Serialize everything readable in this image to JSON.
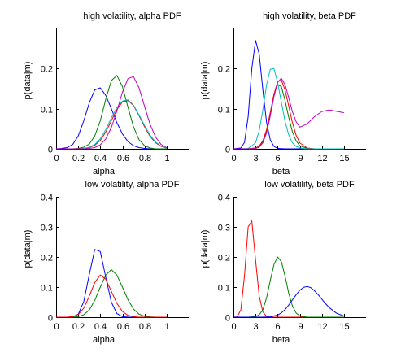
{
  "chart_data": [
    {
      "type": "line",
      "title": "high volatility, alpha PDF",
      "xlabel": "alpha",
      "ylabel": "p(data|m)",
      "xlim": [
        0,
        1.2
      ],
      "ylim": [
        0,
        0.3
      ],
      "xticks": [
        0,
        0.2,
        0.4,
        0.6,
        0.8,
        1
      ],
      "xtick_labels": [
        "0",
        "0.2",
        "0.4",
        "0.6",
        "0.8",
        "1"
      ],
      "yticks": [
        0,
        0.1,
        0.2
      ],
      "ytick_labels": [
        "0",
        "0.1",
        "0.2"
      ],
      "grid": false,
      "series": [
        {
          "color": "#0000ff",
          "x": [
            0,
            0.05,
            0.1,
            0.15,
            0.2,
            0.25,
            0.3,
            0.35,
            0.4,
            0.45,
            0.5,
            0.55,
            0.6,
            0.65,
            0.7,
            0.75,
            0.8,
            0.85,
            0.9,
            0.95,
            1
          ],
          "values": [
            0,
            0.001,
            0.003,
            0.011,
            0.032,
            0.07,
            0.115,
            0.147,
            0.152,
            0.133,
            0.1,
            0.065,
            0.037,
            0.018,
            0.008,
            0.003,
            0.001,
            0,
            0,
            0,
            0
          ]
        },
        {
          "color": "#008000",
          "x": [
            0,
            0.05,
            0.1,
            0.15,
            0.2,
            0.25,
            0.3,
            0.35,
            0.4,
            0.45,
            0.5,
            0.55,
            0.6,
            0.65,
            0.7,
            0.75,
            0.8,
            0.85,
            0.9,
            0.95,
            1
          ],
          "values": [
            0,
            0,
            0,
            0,
            0.001,
            0.004,
            0.012,
            0.032,
            0.07,
            0.124,
            0.17,
            0.183,
            0.155,
            0.104,
            0.055,
            0.023,
            0.008,
            0.002,
            0,
            0,
            0
          ]
        },
        {
          "color": "#ff0000",
          "x": [
            0,
            0.05,
            0.1,
            0.15,
            0.2,
            0.25,
            0.3,
            0.35,
            0.4,
            0.45,
            0.5,
            0.55,
            0.6,
            0.65,
            0.7,
            0.75,
            0.8,
            0.85,
            0.9,
            0.95,
            1
          ],
          "values": [
            0,
            0,
            0,
            0,
            0,
            0.001,
            0.003,
            0.009,
            0.021,
            0.042,
            0.07,
            0.098,
            0.117,
            0.12,
            0.108,
            0.083,
            0.055,
            0.031,
            0.015,
            0.006,
            0.002
          ]
        },
        {
          "color": "#00bfbf",
          "x": [
            0,
            0.05,
            0.1,
            0.15,
            0.2,
            0.25,
            0.3,
            0.35,
            0.4,
            0.45,
            0.5,
            0.55,
            0.6,
            0.65,
            0.7,
            0.75,
            0.8,
            0.85,
            0.9,
            0.95,
            1
          ],
          "values": [
            0,
            0,
            0,
            0,
            0,
            0.001,
            0.004,
            0.011,
            0.025,
            0.048,
            0.077,
            0.103,
            0.119,
            0.122,
            0.109,
            0.085,
            0.058,
            0.034,
            0.017,
            0.007,
            0.002
          ]
        },
        {
          "color": "#bf00bf",
          "x": [
            0,
            0.05,
            0.1,
            0.15,
            0.2,
            0.25,
            0.3,
            0.35,
            0.4,
            0.45,
            0.5,
            0.55,
            0.6,
            0.65,
            0.7,
            0.75,
            0.8,
            0.85,
            0.9,
            0.95,
            1
          ],
          "values": [
            0,
            0,
            0,
            0,
            0,
            0,
            0.001,
            0.003,
            0.01,
            0.025,
            0.053,
            0.094,
            0.141,
            0.175,
            0.18,
            0.152,
            0.106,
            0.061,
            0.029,
            0.011,
            0.003
          ]
        }
      ]
    },
    {
      "type": "line",
      "title": "high volatility, beta PDF",
      "xlabel": "beta",
      "ylabel": "p(data|m)",
      "xlim": [
        0,
        18
      ],
      "ylim": [
        0,
        0.3
      ],
      "xticks": [
        0,
        3,
        6,
        9,
        12,
        15
      ],
      "xtick_labels": [
        "0",
        "3",
        "6",
        "9",
        "12",
        "15"
      ],
      "yticks": [
        0,
        0.1,
        0.2
      ],
      "ytick_labels": [
        "0",
        "0.1",
        "0.2"
      ],
      "grid": false,
      "series": [
        {
          "color": "#0000ff",
          "x": [
            0,
            1,
            1.5,
            2,
            2.5,
            3,
            3.5,
            4,
            4.5,
            5,
            5.5,
            6,
            7,
            8,
            9,
            10,
            11,
            12,
            13,
            14,
            15
          ],
          "values": [
            0,
            0.002,
            0.016,
            0.08,
            0.2,
            0.27,
            0.236,
            0.146,
            0.065,
            0.022,
            0.006,
            0.001,
            0,
            0,
            0,
            0,
            0,
            0,
            0,
            0,
            0
          ]
        },
        {
          "color": "#008000",
          "x": [
            0,
            1,
            2,
            3,
            3.5,
            4,
            4.5,
            5,
            5.5,
            6,
            6.5,
            7,
            7.5,
            8,
            8.5,
            9,
            10,
            11,
            12,
            13,
            15
          ],
          "values": [
            0,
            0,
            0,
            0.002,
            0.006,
            0.018,
            0.046,
            0.09,
            0.135,
            0.16,
            0.155,
            0.121,
            0.079,
            0.043,
            0.02,
            0.008,
            0.001,
            0,
            0,
            0,
            0
          ]
        },
        {
          "color": "#ff0000",
          "x": [
            0,
            1,
            2,
            3,
            3.5,
            4,
            4.5,
            5,
            5.5,
            6,
            6.5,
            7,
            7.5,
            8,
            8.5,
            9,
            10,
            11,
            12,
            13,
            15
          ],
          "values": [
            0,
            0,
            0,
            0.002,
            0.007,
            0.02,
            0.048,
            0.09,
            0.136,
            0.167,
            0.171,
            0.147,
            0.107,
            0.066,
            0.034,
            0.015,
            0.002,
            0,
            0,
            0,
            0
          ]
        },
        {
          "color": "#00bfbf",
          "x": [
            0,
            1,
            2,
            3,
            3.5,
            4,
            4.5,
            5,
            5.5,
            6,
            6.5,
            7,
            7.5,
            8,
            8.5,
            9,
            10,
            11,
            12,
            13,
            15
          ],
          "values": [
            0,
            0,
            0.001,
            0.015,
            0.045,
            0.098,
            0.16,
            0.198,
            0.2,
            0.166,
            0.116,
            0.069,
            0.035,
            0.015,
            0.006,
            0.002,
            0,
            0,
            0,
            0,
            0
          ]
        },
        {
          "color": "#bf00bf",
          "x": [
            0,
            1,
            2,
            3,
            3.5,
            4,
            4.5,
            5,
            5.5,
            6,
            6.5,
            7,
            7.5,
            8,
            8.5,
            9,
            10,
            11,
            12,
            13,
            15
          ],
          "values": [
            0,
            0,
            0,
            0.001,
            0.004,
            0.015,
            0.04,
            0.082,
            0.13,
            0.166,
            0.176,
            0.16,
            0.128,
            0.093,
            0.068,
            0.054,
            0.062,
            0.08,
            0.093,
            0.097,
            0.09
          ]
        }
      ]
    },
    {
      "type": "line",
      "title": "low volatility, alpha PDF",
      "xlabel": "alpha",
      "ylabel": "p(data|m)",
      "xlim": [
        0,
        1.2
      ],
      "ylim": [
        0,
        0.4
      ],
      "xticks": [
        0,
        0.2,
        0.4,
        0.6,
        0.8,
        1
      ],
      "xtick_labels": [
        "0",
        "0.2",
        "0.4",
        "0.6",
        "0.8",
        "1"
      ],
      "yticks": [
        0,
        0.1,
        0.2,
        0.3,
        0.4
      ],
      "ytick_labels": [
        "0",
        "0.1",
        "0.2",
        "0.3",
        "0.4"
      ],
      "grid": false,
      "series": [
        {
          "color": "#0000ff",
          "x": [
            0,
            0.05,
            0.1,
            0.15,
            0.2,
            0.25,
            0.3,
            0.35,
            0.4,
            0.45,
            0.5,
            0.55,
            0.6,
            0.65,
            0.7,
            0.75,
            0.8,
            0.85,
            0.9,
            0.95,
            1
          ],
          "values": [
            0,
            0,
            0,
            0.001,
            0.01,
            0.052,
            0.142,
            0.225,
            0.218,
            0.132,
            0.05,
            0.012,
            0.002,
            0,
            0,
            0,
            0,
            0,
            0,
            0,
            0
          ]
        },
        {
          "color": "#008000",
          "x": [
            0,
            0.05,
            0.1,
            0.15,
            0.2,
            0.25,
            0.3,
            0.35,
            0.4,
            0.45,
            0.5,
            0.55,
            0.6,
            0.65,
            0.7,
            0.75,
            0.8,
            0.85,
            0.9,
            0.95,
            1
          ],
          "values": [
            0,
            0,
            0,
            0,
            0.002,
            0.008,
            0.024,
            0.056,
            0.1,
            0.14,
            0.158,
            0.14,
            0.1,
            0.058,
            0.027,
            0.01,
            0.003,
            0.001,
            0,
            0,
            0
          ]
        },
        {
          "color": "#ff0000",
          "x": [
            0,
            0.05,
            0.1,
            0.15,
            0.2,
            0.25,
            0.3,
            0.35,
            0.4,
            0.45,
            0.5,
            0.55,
            0.6,
            0.65,
            0.7,
            0.75,
            0.8,
            0.85,
            0.9,
            0.95,
            1
          ],
          "values": [
            0,
            0,
            0,
            0.002,
            0.009,
            0.03,
            0.07,
            0.115,
            0.14,
            0.126,
            0.086,
            0.046,
            0.019,
            0.006,
            0.002,
            0,
            0,
            0,
            0,
            0,
            0
          ]
        }
      ]
    },
    {
      "type": "line",
      "title": "low volatility, beta PDF",
      "xlabel": "beta",
      "ylabel": "p(data|m)",
      "xlim": [
        0,
        18
      ],
      "ylim": [
        0,
        0.4
      ],
      "xticks": [
        0,
        3,
        6,
        9,
        12,
        15
      ],
      "xtick_labels": [
        "0",
        "3",
        "6",
        "9",
        "12",
        "15"
      ],
      "yticks": [
        0,
        0.1,
        0.2,
        0.3,
        0.4
      ],
      "ytick_labels": [
        "0",
        "0.1",
        "0.2",
        "0.3",
        "0.4"
      ],
      "grid": false,
      "series": [
        {
          "color": "#ff0000",
          "x": [
            0,
            0.5,
            1,
            1.5,
            2,
            2.5,
            3,
            3.5,
            4,
            4.5,
            5,
            6,
            7,
            8,
            9,
            10,
            11,
            12,
            13,
            14,
            15
          ],
          "values": [
            0,
            0.001,
            0.024,
            0.138,
            0.3,
            0.32,
            0.19,
            0.07,
            0.017,
            0.003,
            0,
            0,
            0,
            0,
            0,
            0,
            0,
            0,
            0,
            0,
            0
          ]
        },
        {
          "color": "#008000",
          "x": [
            0,
            1,
            2,
            3,
            3.5,
            4,
            4.5,
            5,
            5.5,
            6,
            6.5,
            7,
            7.5,
            8,
            8.5,
            9,
            10,
            11,
            12,
            13,
            15
          ],
          "values": [
            0,
            0,
            0,
            0.002,
            0.008,
            0.025,
            0.065,
            0.122,
            0.175,
            0.2,
            0.185,
            0.137,
            0.08,
            0.038,
            0.014,
            0.004,
            0,
            0,
            0,
            0,
            0
          ]
        },
        {
          "color": "#0000ff",
          "x": [
            0,
            2,
            4,
            5,
            6,
            6.5,
            7,
            7.5,
            8,
            8.5,
            9,
            9.5,
            10,
            10.5,
            11,
            11.5,
            12,
            12.5,
            13,
            14,
            15
          ],
          "values": [
            0,
            0,
            0,
            0.001,
            0.007,
            0.014,
            0.025,
            0.04,
            0.057,
            0.074,
            0.089,
            0.099,
            0.102,
            0.098,
            0.088,
            0.075,
            0.06,
            0.045,
            0.032,
            0.013,
            0.004
          ]
        }
      ]
    }
  ]
}
